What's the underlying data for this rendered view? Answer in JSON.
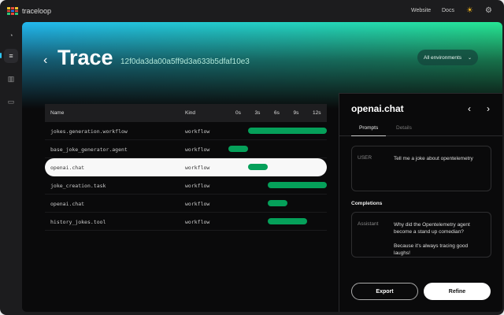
{
  "app": {
    "brand": "traceloop",
    "nav": [
      "Website",
      "Docs"
    ]
  },
  "header": {
    "title": "Trace",
    "trace_id": "12f0da3da00a5ff9d3a633b5dfaf10e3",
    "environment": "All environments"
  },
  "table": {
    "columns": {
      "name": "Name",
      "kind": "Kind"
    },
    "ticks": [
      "0s",
      "3s",
      "6s",
      "9s",
      "12s"
    ],
    "rows": [
      {
        "name": "jokes.generation.workflow",
        "kind": "workflow",
        "start": 3,
        "end": 15
      },
      {
        "name": "base_joke_generator.agent",
        "kind": "workflow",
        "start": 0,
        "end": 3
      },
      {
        "name": "openai.chat",
        "kind": "workflow",
        "start": 3,
        "end": 6,
        "selected": true
      },
      {
        "name": "joke_creation.task",
        "kind": "workflow",
        "start": 6,
        "end": 15
      },
      {
        "name": "openai.chat",
        "kind": "workflow",
        "start": 6,
        "end": 9
      },
      {
        "name": "history_jokes.tool",
        "kind": "workflow",
        "start": 6,
        "end": 12
      }
    ],
    "bar_color": "#05a05a"
  },
  "panel": {
    "title": "openai.chat",
    "tabs": [
      "Prompts",
      "Details"
    ],
    "active_tab": "Prompts",
    "prompt": {
      "role": "USER",
      "text": "Tell me a joke about opentelemetry"
    },
    "completions_label": "Completions",
    "completion": {
      "role": "Assistant",
      "line1": "Why did the Opentelemetry agent become a stand up comedian?",
      "line2": "Because it's always tracing good laughs!"
    },
    "export": "Export",
    "refine": "Refine"
  }
}
